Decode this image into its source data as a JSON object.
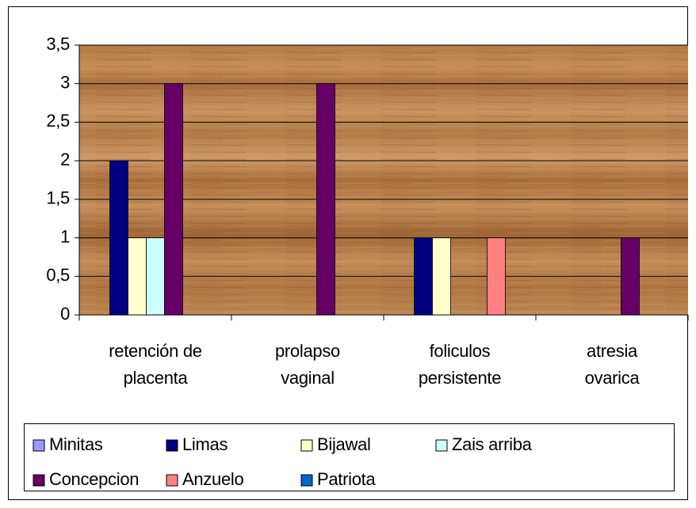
{
  "chart_data": {
    "type": "bar",
    "categories": [
      [
        "retención de",
        "placenta"
      ],
      [
        "prolapso",
        "vaginal"
      ],
      [
        "foliculos",
        "persistente"
      ],
      [
        "atresia",
        "ovarica"
      ]
    ],
    "series": [
      {
        "name": "Minitas",
        "color": "#9999ff",
        "values": [
          0,
          0,
          0,
          0
        ]
      },
      {
        "name": "Limas",
        "color": "#000080",
        "values": [
          2,
          0,
          1,
          0
        ]
      },
      {
        "name": "Bijawal",
        "color": "#ffffcc",
        "values": [
          1,
          0,
          1,
          0
        ]
      },
      {
        "name": "Zais arriba",
        "color": "#ccffff",
        "values": [
          1,
          0,
          0,
          0
        ]
      },
      {
        "name": "Concepcion",
        "color": "#660066",
        "values": [
          3,
          3,
          0,
          1
        ]
      },
      {
        "name": "Anzuelo",
        "color": "#ff8080",
        "values": [
          0,
          0,
          1,
          0
        ]
      },
      {
        "name": "Patriota",
        "color": "#0066cc",
        "values": [
          0,
          0,
          0,
          0
        ]
      }
    ],
    "ylim": [
      0,
      3.5
    ],
    "yticks": [
      0,
      {
        "value": 0.5,
        "label": "0,5"
      },
      1,
      {
        "value": 1.5,
        "label": "1,5"
      },
      2,
      {
        "value": 2.5,
        "label": "2,5"
      },
      3,
      {
        "value": 3.5,
        "label": "3,5"
      }
    ],
    "grid": true,
    "legend": "bottom"
  }
}
